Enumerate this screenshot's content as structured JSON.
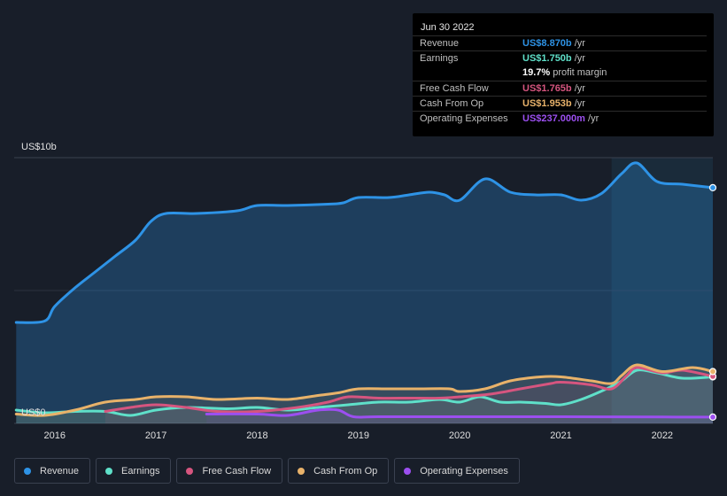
{
  "tooltip": {
    "date": "Jun 30 2022",
    "rows": [
      {
        "label": "Revenue",
        "value": "US$8.870b",
        "unit": " /yr",
        "color": "#2e93e6"
      },
      {
        "label": "Earnings",
        "value": "US$1.750b",
        "unit": " /yr",
        "color": "#5fe0c9"
      },
      {
        "label": "",
        "value": "19.7%",
        "unit": " profit margin",
        "color": "#ffffff"
      },
      {
        "label": "Free Cash Flow",
        "value": "US$1.765b",
        "unit": " /yr",
        "color": "#d6557f"
      },
      {
        "label": "Cash From Op",
        "value": "US$1.953b",
        "unit": " /yr",
        "color": "#e8b26a"
      },
      {
        "label": "Operating Expenses",
        "value": "US$237.000m",
        "unit": " /yr",
        "color": "#9c4ff0"
      }
    ]
  },
  "chart_data": {
    "type": "area",
    "y_top_label": "US$10b",
    "y_bottom_label": "US$0",
    "ylim": [
      0,
      10
    ],
    "xlim": [
      2015.6,
      2022.5
    ],
    "x_ticks": [
      "2016",
      "2017",
      "2018",
      "2019",
      "2020",
      "2021",
      "2022"
    ],
    "x_tick_values": [
      2016,
      2017,
      2018,
      2019,
      2020,
      2021,
      2022
    ],
    "highlight_from": 2021.5,
    "series": [
      {
        "name": "Revenue",
        "color": "#2e93e6",
        "x": [
          2015.62,
          2015.9,
          2016.0,
          2016.2,
          2016.4,
          2016.6,
          2016.8,
          2016.95,
          2017.1,
          2017.4,
          2017.8,
          2018.0,
          2018.3,
          2018.7,
          2018.85,
          2019.0,
          2019.3,
          2019.5,
          2019.7,
          2019.85,
          2020.0,
          2020.25,
          2020.5,
          2020.75,
          2021.0,
          2021.2,
          2021.4,
          2021.6,
          2021.75,
          2021.95,
          2022.2,
          2022.5
        ],
        "y": [
          3.8,
          3.85,
          4.4,
          5.1,
          5.7,
          6.3,
          6.9,
          7.6,
          7.9,
          7.9,
          8.0,
          8.2,
          8.2,
          8.25,
          8.3,
          8.5,
          8.5,
          8.6,
          8.7,
          8.6,
          8.4,
          9.2,
          8.7,
          8.6,
          8.6,
          8.4,
          8.65,
          9.4,
          9.8,
          9.1,
          9.0,
          8.87
        ]
      },
      {
        "name": "Earnings",
        "color": "#5fe0c9",
        "x": [
          2015.62,
          2015.9,
          2016.2,
          2016.5,
          2016.75,
          2017.0,
          2017.3,
          2017.7,
          2018.0,
          2018.3,
          2018.6,
          2018.9,
          2019.2,
          2019.5,
          2019.8,
          2020.0,
          2020.2,
          2020.4,
          2020.6,
          2020.85,
          2021.0,
          2021.2,
          2021.45,
          2021.6,
          2021.75,
          2021.95,
          2022.2,
          2022.5
        ],
        "y": [
          0.5,
          0.4,
          0.45,
          0.45,
          0.3,
          0.5,
          0.6,
          0.55,
          0.6,
          0.5,
          0.6,
          0.7,
          0.8,
          0.8,
          0.9,
          0.8,
          1.0,
          0.8,
          0.8,
          0.75,
          0.7,
          0.9,
          1.3,
          1.6,
          2.0,
          1.9,
          1.7,
          1.75
        ]
      },
      {
        "name": "Free Cash Flow",
        "color": "#d6557f",
        "x": [
          2016.5,
          2016.75,
          2017.0,
          2017.3,
          2017.6,
          2018.0,
          2018.4,
          2018.7,
          2018.9,
          2019.2,
          2019.5,
          2019.8,
          2020.0,
          2020.3,
          2020.6,
          2020.9,
          2021.0,
          2021.3,
          2021.5,
          2021.65,
          2021.75,
          2022.0,
          2022.2,
          2022.5
        ],
        "y": [
          0.45,
          0.6,
          0.7,
          0.6,
          0.45,
          0.45,
          0.6,
          0.8,
          1.0,
          0.95,
          0.95,
          0.95,
          1.0,
          1.1,
          1.3,
          1.5,
          1.55,
          1.45,
          1.3,
          1.8,
          2.1,
          1.9,
          2.0,
          1.77
        ]
      },
      {
        "name": "Cash From Op",
        "color": "#e8b26a",
        "x": [
          2015.62,
          2015.9,
          2016.2,
          2016.5,
          2016.8,
          2017.0,
          2017.3,
          2017.6,
          2018.0,
          2018.3,
          2018.6,
          2018.8,
          2019.0,
          2019.3,
          2019.6,
          2019.9,
          2020.0,
          2020.25,
          2020.5,
          2020.8,
          2021.0,
          2021.3,
          2021.5,
          2021.6,
          2021.75,
          2022.0,
          2022.3,
          2022.5
        ],
        "y": [
          0.35,
          0.3,
          0.5,
          0.8,
          0.9,
          1.0,
          1.0,
          0.9,
          0.95,
          0.9,
          1.05,
          1.15,
          1.3,
          1.3,
          1.3,
          1.3,
          1.2,
          1.3,
          1.6,
          1.75,
          1.75,
          1.6,
          1.5,
          1.8,
          2.2,
          1.95,
          2.1,
          1.95
        ]
      },
      {
        "name": "Operating Expenses",
        "color": "#9c4ff0",
        "x": [
          2017.5,
          2018.0,
          2018.3,
          2018.6,
          2018.8,
          2018.95,
          2019.2,
          2020.0,
          2021.0,
          2022.0,
          2022.5
        ],
        "y": [
          0.35,
          0.35,
          0.3,
          0.5,
          0.5,
          0.25,
          0.25,
          0.25,
          0.25,
          0.24,
          0.237
        ]
      }
    ]
  },
  "legend": [
    "Revenue",
    "Earnings",
    "Free Cash Flow",
    "Cash From Op",
    "Operating Expenses"
  ]
}
